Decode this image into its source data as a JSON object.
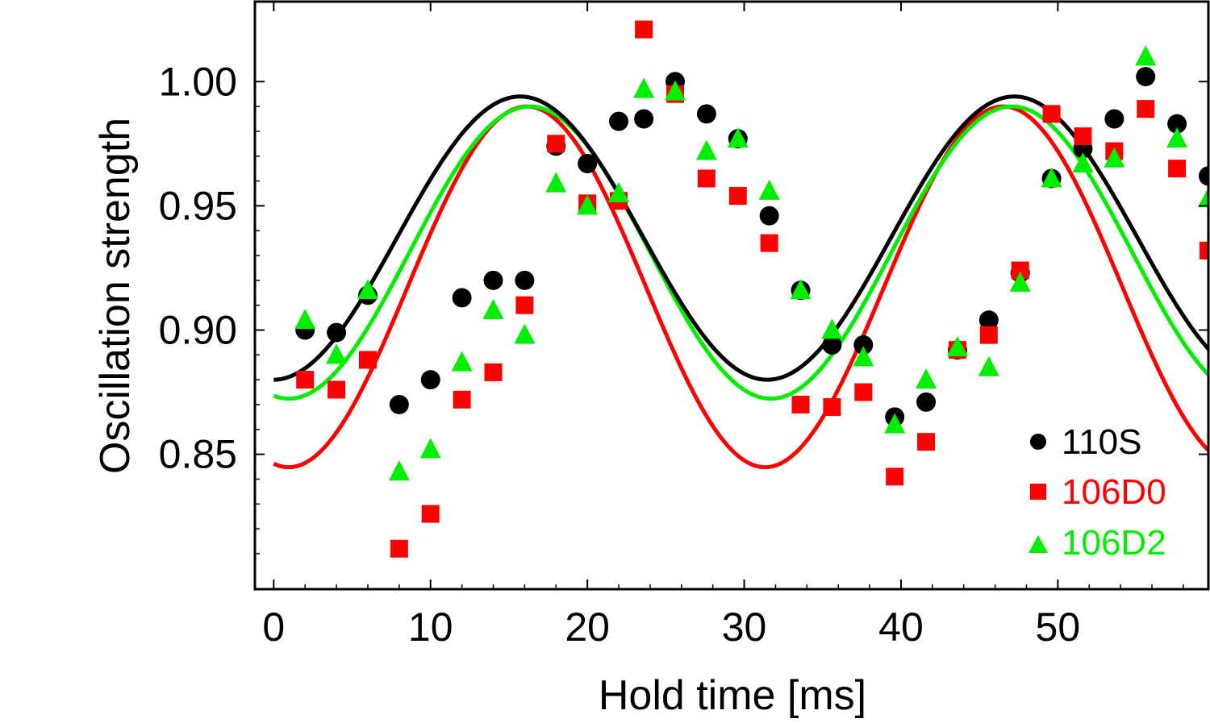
{
  "chart_data": {
    "type": "scatter",
    "title": "",
    "xlabel": "Hold time [ms]",
    "ylabel": "Oscillation strength",
    "xlim": [
      -1.2,
      59.6
    ],
    "ylim": [
      0.7957,
      1.0322
    ],
    "xticks": [
      0,
      10,
      20,
      30,
      40,
      50
    ],
    "yticks": [
      0.85,
      0.9,
      0.95,
      1.0
    ],
    "xtick_labels": [
      "0",
      "10",
      "20",
      "30",
      "40",
      "50"
    ],
    "ytick_labels": [
      "0.85",
      "0.90",
      "0.95",
      "1.00"
    ],
    "grid": false,
    "legend_position": "bottom-right",
    "series": [
      {
        "name": "110S",
        "color": "#000000",
        "marker": "circle",
        "x": [
          2,
          4,
          6,
          8,
          10,
          12,
          14,
          16,
          18,
          20,
          22,
          23.6,
          25.6,
          27.6,
          29.6,
          31.6,
          33.6,
          35.6,
          37.6,
          39.6,
          41.6,
          43.6,
          45.6,
          47.6,
          49.6,
          51.6,
          53.6,
          55.6,
          57.6,
          59.6
        ],
        "y": [
          0.9,
          0.899,
          0.914,
          0.87,
          0.88,
          0.913,
          0.92,
          0.92,
          0.974,
          0.967,
          0.984,
          0.985,
          1.0,
          0.987,
          0.977,
          0.946,
          0.916,
          0.894,
          0.894,
          0.865,
          0.871,
          0.892,
          0.904,
          0.923,
          0.961,
          0.973,
          0.985,
          1.002,
          0.983,
          0.962
        ],
        "fit": {
          "offset": 0.937,
          "amplitude": 0.057,
          "period": 31.5,
          "phase_ms": 15.72
        }
      },
      {
        "name": "106D0",
        "color": "#ff0000",
        "marker": "square",
        "x": [
          2,
          4,
          6,
          8,
          10,
          12,
          14,
          16,
          18,
          20,
          22,
          23.6,
          25.6,
          27.6,
          29.6,
          31.6,
          33.6,
          35.6,
          37.6,
          39.6,
          41.6,
          43.6,
          45.6,
          47.6,
          49.6,
          51.6,
          53.6,
          55.6,
          57.6,
          59.6
        ],
        "y": [
          0.88,
          0.876,
          0.888,
          0.812,
          0.826,
          0.872,
          0.883,
          0.91,
          0.975,
          0.951,
          0.952,
          1.021,
          0.995,
          0.961,
          0.954,
          0.935,
          0.87,
          0.869,
          0.875,
          0.841,
          0.855,
          0.892,
          0.898,
          0.924,
          0.987,
          0.978,
          0.972,
          0.989,
          0.965,
          0.932
        ],
        "fit": {
          "offset": 0.9174,
          "amplitude": 0.0726,
          "period": 30.38,
          "phase_ms": 16.14
        }
      },
      {
        "name": "106D2",
        "color": "#00ee00",
        "marker": "triangle",
        "x": [
          2,
          4,
          6,
          8,
          10,
          12,
          14,
          16,
          18,
          20,
          22,
          23.6,
          25.6,
          27.6,
          29.6,
          31.6,
          33.6,
          35.6,
          37.6,
          39.6,
          41.6,
          43.6,
          45.6,
          47.6,
          49.6,
          51.6,
          53.6,
          55.6,
          57.6,
          59.6
        ],
        "y": [
          0.904,
          0.89,
          0.916,
          0.843,
          0.852,
          0.887,
          0.908,
          0.898,
          0.959,
          0.95,
          0.955,
          0.997,
          0.996,
          0.972,
          0.977,
          0.956,
          0.916,
          0.9,
          0.889,
          0.862,
          0.88,
          0.893,
          0.885,
          0.919,
          0.961,
          0.967,
          0.969,
          1.01,
          0.977,
          0.953
        ],
        "fit": {
          "offset": 0.9312,
          "amplitude": 0.0588,
          "period": 30.74,
          "phase_ms": 16.33
        }
      }
    ]
  }
}
